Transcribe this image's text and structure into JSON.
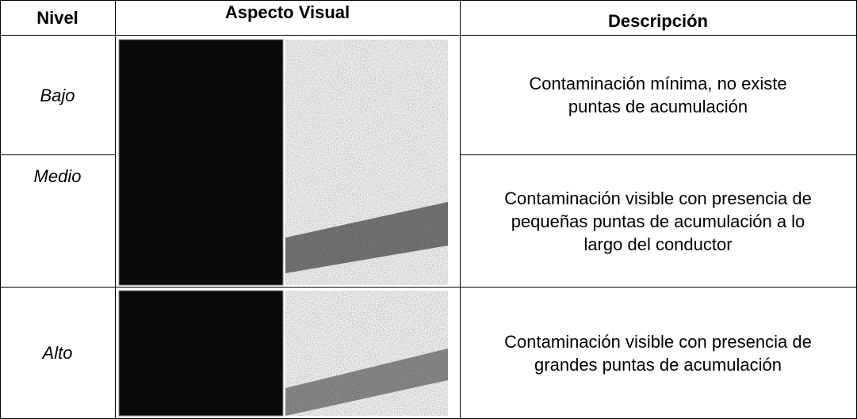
{
  "table": {
    "header": [
      "Nivel",
      "Aspecto Visual",
      "Descripción"
    ],
    "rows": [
      {
        "level": "Bajo",
        "description": [
          "Contaminación mínima, no existe",
          "puntas de acumulación"
        ]
      },
      {
        "level": "Medio",
        "description": [
          "Contaminación visible con presencia de",
          "pequeñas puntas de acumulación a lo",
          "largo del conductor"
        ]
      },
      {
        "level": "Alto",
        "description": [
          "Contaminación visible con presencia de",
          "grandes puntas de acumulación"
        ]
      }
    ]
  }
}
